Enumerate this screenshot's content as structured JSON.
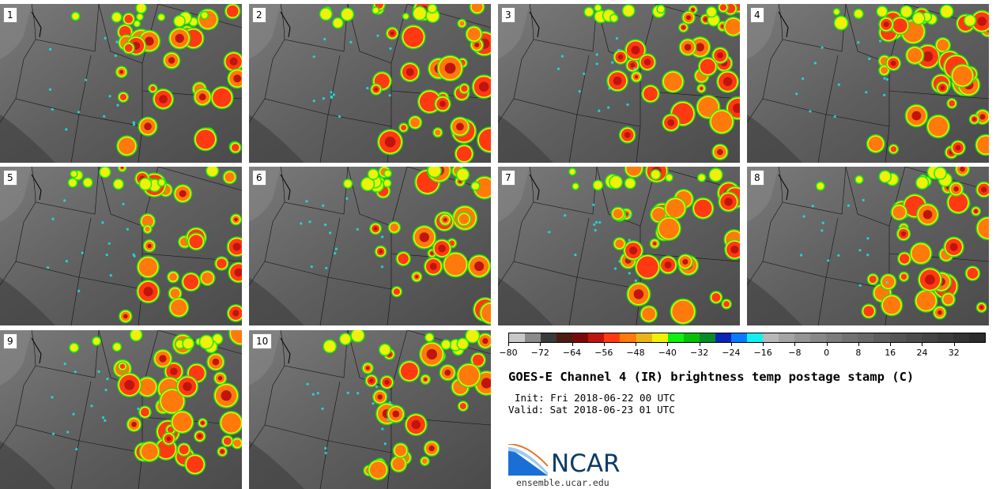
{
  "panels": [
    {
      "label": "1"
    },
    {
      "label": "2"
    },
    {
      "label": "3"
    },
    {
      "label": "4"
    },
    {
      "label": "5"
    },
    {
      "label": "6"
    },
    {
      "label": "7"
    },
    {
      "label": "8"
    },
    {
      "label": "9"
    },
    {
      "label": "10"
    }
  ],
  "colorbar": {
    "colors": [
      "#c8c8c8",
      "#8a8a8a",
      "#3a3a3a",
      "#4a1e14",
      "#7a0a0a",
      "#c0150f",
      "#ff3a12",
      "#ff7a0a",
      "#e8b41a",
      "#f0f008",
      "#10f010",
      "#08c008",
      "#0a8a28",
      "#0a24b4",
      "#0a7aff",
      "#12f0f0",
      "#b8b8b8",
      "#a4a4a4",
      "#949494",
      "#888888",
      "#7c7c7c",
      "#717171",
      "#686868",
      "#5e5e5e",
      "#545454",
      "#4c4c4c",
      "#444444",
      "#3c3c3c",
      "#343434",
      "#2c2c2c"
    ],
    "tick_labels": [
      "−80",
      "−72",
      "−64",
      "−56",
      "−48",
      "−40",
      "−32",
      "−24",
      "−16",
      "−8",
      "0",
      "8",
      "16",
      "24",
      "32"
    ]
  },
  "title": "GOES-E Channel 4 (IR) brightness temp postage stamp (C)",
  "init": "Init: Fri 2018-06-22 00 UTC",
  "valid": "Valid: Sat 2018-06-23 01 UTC",
  "logo_text": "NCAR",
  "website": "ensemble.ucar.edu"
}
